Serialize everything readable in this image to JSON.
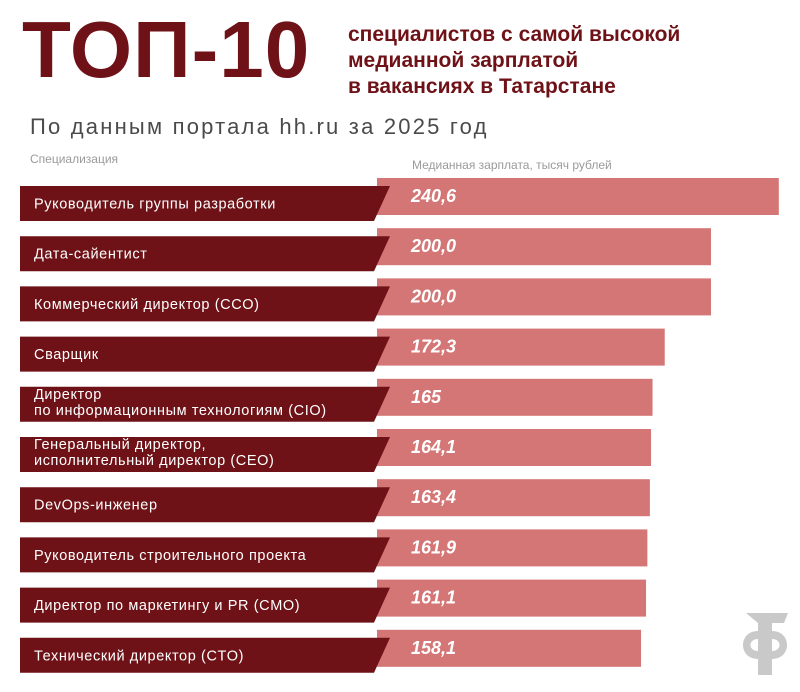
{
  "header": {
    "title_big": "ТОП-10",
    "title_lines": [
      "специалистов с самой высокой",
      "медианной зарплатой",
      "в вакансиях в Татарстане"
    ],
    "subtitle": "По данным портала hh.ru за 2025 год"
  },
  "colors": {
    "accent": "#6e1217",
    "bar": "#d47676",
    "label_bg": "#6e1217"
  },
  "logo": {
    "icon": "ф-logo-icon"
  },
  "chart_data": {
    "type": "bar",
    "orientation": "horizontal",
    "xlabel": "Медианная зарплата, тысяч рублей",
    "ylabel": "Специализация",
    "categories": [
      "Руководитель группы разработки",
      "Дата-сайентист",
      "Коммерческий директор (CCO)",
      "Сварщик",
      "Директор\nпо информационным технологиям (CIO)",
      "Генеральный директор,\nисполнительный директор (CEO)",
      "DevOps-инженер",
      "Руководитель строительного проекта",
      "Директор по маркетингу и PR (CMO)",
      "Технический директор (CTO)"
    ],
    "values": [
      240.6,
      200.0,
      200.0,
      172.3,
      165,
      164.1,
      163.4,
      161.9,
      161.1,
      158.1
    ],
    "value_labels": [
      "240,6",
      "200,0",
      "200,0",
      "172,3",
      "165",
      "164,1",
      "163,4",
      "161,9",
      "161,1",
      "158,1"
    ],
    "grid": false,
    "legend": "none"
  }
}
